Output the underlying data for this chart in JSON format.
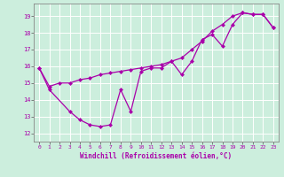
{
  "xlabel": "Windchill (Refroidissement éolien,°C)",
  "bg_color": "#cceedd",
  "line_color": "#aa00aa",
  "marker": "D",
  "markersize": 2.5,
  "linewidth": 0.9,
  "xlim": [
    -0.5,
    23.5
  ],
  "ylim": [
    11.5,
    19.75
  ],
  "xticks": [
    0,
    1,
    2,
    3,
    4,
    5,
    6,
    7,
    8,
    9,
    10,
    11,
    12,
    13,
    14,
    15,
    16,
    17,
    18,
    19,
    20,
    21,
    22,
    23
  ],
  "yticks": [
    12,
    13,
    14,
    15,
    16,
    17,
    18,
    19
  ],
  "series1_x": [
    0,
    1,
    3,
    4,
    5,
    6,
    7,
    8,
    9,
    10,
    11,
    12,
    13,
    14,
    15,
    16,
    17,
    18,
    19,
    20,
    21,
    22,
    23
  ],
  "series1_y": [
    15.9,
    14.6,
    13.3,
    12.8,
    12.5,
    12.4,
    12.5,
    14.6,
    13.3,
    15.7,
    15.9,
    15.9,
    16.3,
    15.5,
    16.3,
    17.6,
    17.9,
    17.2,
    18.5,
    19.2,
    19.1,
    19.1,
    18.3
  ],
  "series2_x": [
    0,
    1,
    2,
    3,
    4,
    5,
    6,
    7,
    8,
    9,
    10,
    11,
    12,
    13,
    14,
    15,
    16,
    17,
    18,
    19,
    20,
    21,
    22,
    23
  ],
  "series2_y": [
    15.9,
    14.8,
    15.0,
    15.0,
    15.2,
    15.3,
    15.5,
    15.6,
    15.7,
    15.8,
    15.9,
    16.0,
    16.1,
    16.3,
    16.5,
    17.0,
    17.5,
    18.1,
    18.5,
    19.0,
    19.2,
    19.1,
    19.1,
    18.3
  ]
}
